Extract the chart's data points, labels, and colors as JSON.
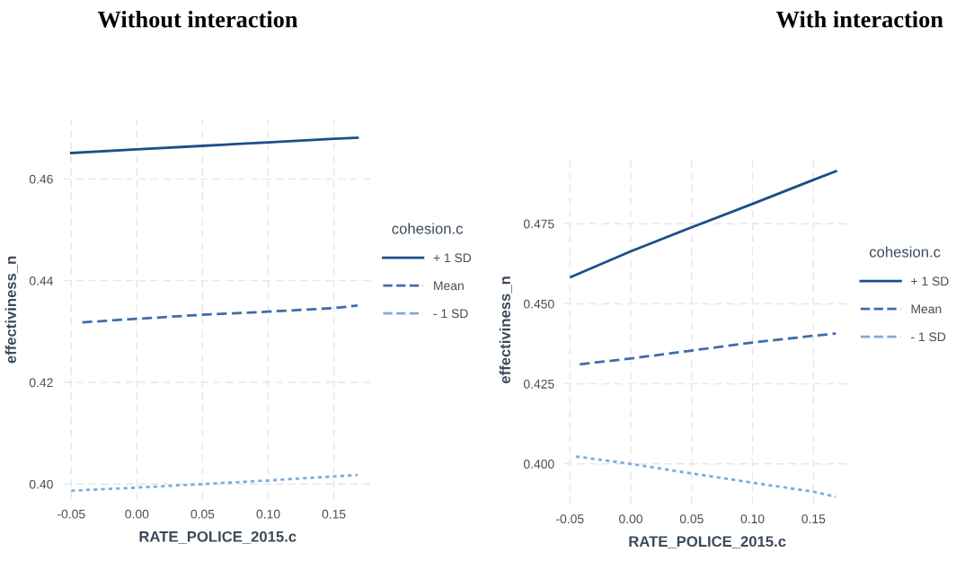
{
  "chart_data": [
    {
      "type": "line",
      "title": "Without interaction",
      "xlabel": "RATE_POLICE_2015.c",
      "ylabel": "effectiviness_n",
      "legend_title": "cohesion.c",
      "legend": "right",
      "grid": true,
      "xlim": [
        -0.056,
        0.179
      ],
      "xticks": [
        {
          "value": -0.05,
          "label": "-0.05"
        },
        {
          "value": 0,
          "label": "0.00"
        },
        {
          "value": 0.05,
          "label": "0.05"
        },
        {
          "value": 0.1,
          "label": "0.10"
        },
        {
          "value": 0.15,
          "label": "0.15"
        }
      ],
      "ylim": [
        0.397,
        0.4716
      ],
      "yticks": [
        {
          "value": 0.4,
          "label": "0.40"
        },
        {
          "value": 0.42,
          "label": "0.42"
        },
        {
          "value": 0.44,
          "label": "0.44"
        },
        {
          "value": 0.46,
          "label": "0.46"
        }
      ],
      "series": [
        {
          "name": "+ 1 SD",
          "color": "#1b4f87",
          "line_style": "solid",
          "x": [
            -0.05,
            0,
            0.05,
            0.1,
            0.15,
            0.168
          ],
          "values": [
            0.4651,
            0.4658,
            0.4665,
            0.4672,
            0.4679,
            0.4681
          ]
        },
        {
          "name": "Mean",
          "color": "#3d6fa9",
          "line_style": "dashed",
          "x": [
            -0.0416,
            0,
            0.05,
            0.1,
            0.15,
            0.168
          ],
          "values": [
            0.4318,
            0.4325,
            0.4333,
            0.4339,
            0.4346,
            0.4351
          ]
        },
        {
          "name": "- 1 SD",
          "color": "#79addf",
          "line_style": "dotted",
          "x": [
            -0.05,
            0,
            0.05,
            0.1,
            0.15,
            0.168
          ],
          "values": [
            0.3987,
            0.3993,
            0.4,
            0.4007,
            0.4015,
            0.4018
          ]
        }
      ]
    },
    {
      "type": "line",
      "title": "With interaction",
      "xlabel": "RATE_POLICE_2015.c",
      "ylabel": "effectiviness_n",
      "legend_title": "cohesion.c",
      "legend": "right",
      "grid": true,
      "xlim": [
        -0.0544,
        0.18
      ],
      "xticks": [
        {
          "value": -0.05,
          "label": "-0.05"
        },
        {
          "value": 0,
          "label": "0.00"
        },
        {
          "value": 0.05,
          "label": "0.05"
        },
        {
          "value": 0.1,
          "label": "0.10"
        },
        {
          "value": 0.15,
          "label": "0.15"
        }
      ],
      "ylim": [
        0.3874,
        0.4963
      ],
      "yticks": [
        {
          "value": 0.4,
          "label": "0.400"
        },
        {
          "value": 0.425,
          "label": "0.425"
        },
        {
          "value": 0.45,
          "label": "0.450"
        },
        {
          "value": 0.475,
          "label": "0.475"
        }
      ],
      "series": [
        {
          "name": "+ 1 SD",
          "color": "#1b4f87",
          "line_style": "solid",
          "x": [
            -0.049,
            0,
            0.05,
            0.1,
            0.15,
            0.1684
          ],
          "values": [
            0.4584,
            0.4664,
            0.4739,
            0.4812,
            0.4887,
            0.4914
          ]
        },
        {
          "name": "Mean",
          "color": "#3d6fa9",
          "line_style": "dashed",
          "x": [
            -0.0419,
            0,
            0.05,
            0.1,
            0.15,
            0.1684
          ],
          "values": [
            0.4311,
            0.4329,
            0.4354,
            0.4379,
            0.44,
            0.4407
          ]
        },
        {
          "name": "- 1 SD",
          "color": "#79addf",
          "line_style": "dotted",
          "x": [
            -0.045,
            0,
            0.05,
            0.1,
            0.15,
            0.1684
          ],
          "values": [
            0.4023,
            0.4,
            0.397,
            0.3941,
            0.3913,
            0.3897
          ]
        }
      ]
    }
  ]
}
